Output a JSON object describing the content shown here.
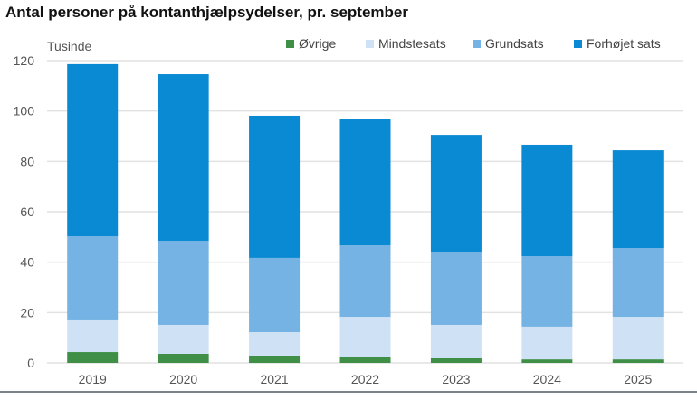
{
  "chart_data": {
    "type": "bar",
    "stacked": true,
    "title": "Antal personer på kontanthjælpsydelser, pr. september",
    "ylabel": "Tusinde",
    "xlabel": "",
    "ylim": [
      0,
      120
    ],
    "yticks": [
      0,
      20,
      40,
      60,
      80,
      100,
      120
    ],
    "grid": true,
    "legend_placement": "top",
    "categories": [
      "2019",
      "2020",
      "2021",
      "2022",
      "2023",
      "2024",
      "2025"
    ],
    "series": [
      {
        "name": "Øvrige",
        "color": "#3f8f47",
        "values": [
          4.3,
          3.6,
          2.9,
          2.2,
          1.8,
          1.4,
          1.4
        ]
      },
      {
        "name": "Mindstesats",
        "color": "#cfe2f5",
        "values": [
          12.6,
          11.5,
          9.3,
          16.1,
          13.3,
          13.0,
          16.9
        ]
      },
      {
        "name": "Grundsats",
        "color": "#74b3e3",
        "values": [
          33.4,
          33.4,
          29.5,
          28.4,
          28.7,
          28.0,
          27.3
        ]
      },
      {
        "name": "Forhøjet sats",
        "color": "#0a8ad2",
        "values": [
          68.3,
          66.1,
          56.4,
          50.0,
          46.7,
          44.2,
          38.8
        ]
      }
    ]
  }
}
